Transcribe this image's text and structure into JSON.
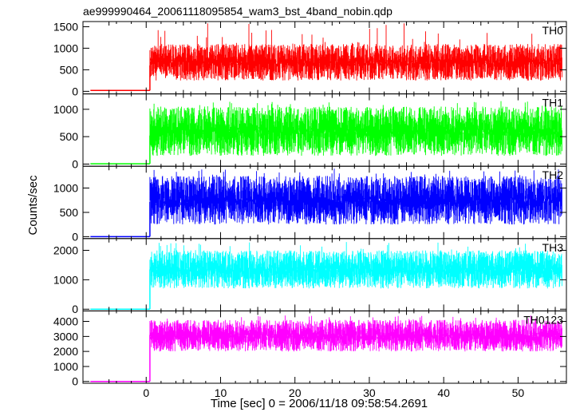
{
  "chart_data": {
    "type": "line",
    "title": "ae999990464_20061118095854_wam3_bst_4band_nobin.qdp",
    "xlabel": "Time [sec] 0 = 2006/11/18 09:58:54.2691",
    "ylabel": "Counts/sec",
    "xlim": [
      -8.5,
      56.5
    ],
    "x_ticks": [
      0,
      10,
      20,
      30,
      40,
      50
    ],
    "onset_x": 0.5,
    "grid": false,
    "panels": [
      {
        "name": "TH0",
        "color": "#ff0000",
        "ylim": [
          -60,
          1620
        ],
        "y_ticks": [
          0,
          500,
          1000,
          1500
        ],
        "pre_level": 20,
        "mean": 600,
        "lo": 250,
        "hi": 1100,
        "spike_max": 1600
      },
      {
        "name": "TH1",
        "color": "#00ff00",
        "ylim": [
          -40,
          1280
        ],
        "y_ticks": [
          0,
          500,
          1000
        ],
        "pre_level": 5,
        "mean": 520,
        "lo": 150,
        "hi": 1050,
        "spike_max": 1150
      },
      {
        "name": "TH2",
        "color": "#0000ff",
        "ylim": [
          -40,
          1450
        ],
        "y_ticks": [
          0,
          500,
          1000
        ],
        "pre_level": 0,
        "mean": 720,
        "lo": 250,
        "hi": 1250,
        "spike_max": 1400
      },
      {
        "name": "TH3",
        "color": "#00ffff",
        "ylim": [
          -60,
          2400
        ],
        "y_ticks": [
          0,
          1000,
          2000
        ],
        "pre_level": 0,
        "mean": 1350,
        "lo": 700,
        "hi": 2000,
        "spike_max": 2300
      },
      {
        "name": "TH0123",
        "color": "#ff00ff",
        "ylim": [
          -120,
          4700
        ],
        "y_ticks": [
          0,
          1000,
          2000,
          3000,
          4000
        ],
        "pre_level": 0,
        "mean": 3100,
        "lo": 2000,
        "hi": 4100,
        "spike_max": 4400
      }
    ]
  }
}
